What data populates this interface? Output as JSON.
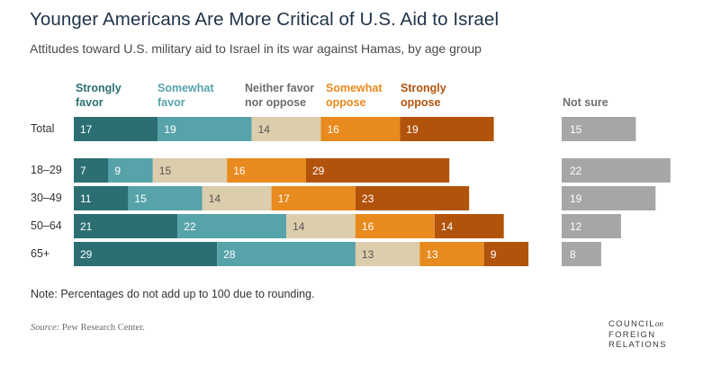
{
  "title": "Younger Americans Are More Critical of U.S. Aid to Israel",
  "subtitle": "Attitudes toward U.S. military aid to Israel in its war against Hamas, by age group",
  "note": "Note: Percentages do not add up to 100 due to rounding.",
  "source": {
    "label": "Source:",
    "text": "Pew Research Center."
  },
  "logo": {
    "line1": "COUNCIL",
    "line1_small": "on",
    "line2": "FOREIGN",
    "line3": "RELATIONS"
  },
  "colors": {
    "strongly_favor": "#2b6f72",
    "somewhat_favor": "#57a3aa",
    "neither": "#dccdac",
    "somewhat_oppose": "#e88a1e",
    "strongly_oppose": "#b2530c",
    "not_sure": "#a4a6a8"
  },
  "chart_data": {
    "type": "bar",
    "orientation": "horizontal-stacked",
    "categories": [
      "Total",
      "18–29",
      "30–49",
      "50–64",
      "65+"
    ],
    "series": [
      {
        "name": "Strongly favor",
        "name_lines": [
          "Strongly",
          "favor"
        ],
        "key": "strongly_favor",
        "values": [
          17,
          7,
          11,
          21,
          29
        ]
      },
      {
        "name": "Somewhat favor",
        "name_lines": [
          "Somewhat",
          "favor"
        ],
        "key": "somewhat_favor",
        "values": [
          19,
          9,
          15,
          22,
          28
        ]
      },
      {
        "name": "Neither favor nor oppose",
        "name_lines": [
          "Neither favor",
          "nor oppose"
        ],
        "key": "neither",
        "values": [
          14,
          15,
          14,
          14,
          13
        ]
      },
      {
        "name": "Somewhat oppose",
        "name_lines": [
          "Somewhat",
          "oppose"
        ],
        "key": "somewhat_oppose",
        "values": [
          16,
          16,
          17,
          16,
          13
        ]
      },
      {
        "name": "Strongly oppose",
        "name_lines": [
          "Strongly",
          "oppose"
        ],
        "key": "strongly_oppose",
        "values": [
          19,
          29,
          23,
          14,
          9
        ]
      }
    ],
    "not_sure": {
      "name": "Not sure",
      "key": "not_sure",
      "values": [
        15,
        22,
        19,
        12,
        8
      ]
    },
    "legend": "top"
  }
}
